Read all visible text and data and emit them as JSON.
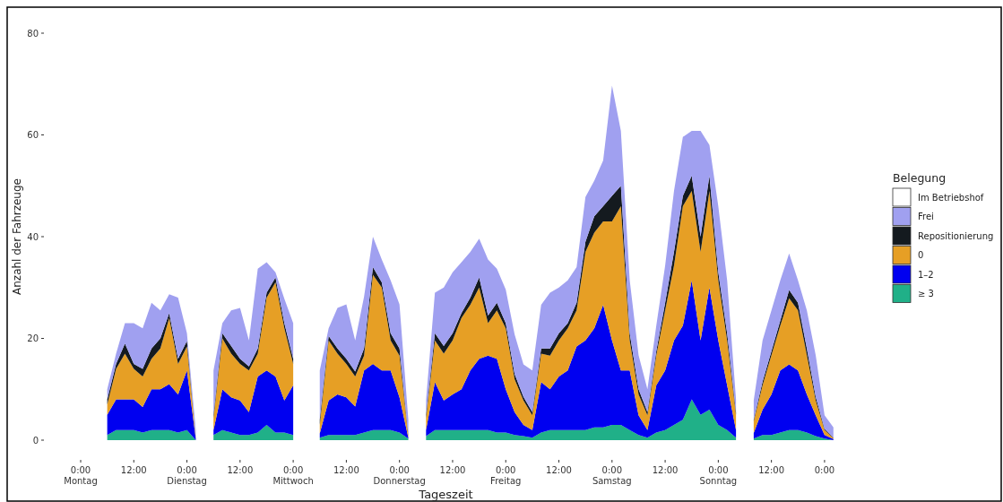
{
  "chart_data": {
    "type": "area",
    "stacked": true,
    "xlabel": "Tageszeit",
    "ylabel": "Anzahl der Fahrzeuge",
    "legend_title": "Belegung",
    "legend": "right",
    "grid": false,
    "ylim": [
      0,
      80
    ],
    "yticks": [
      0,
      20,
      40,
      60,
      80
    ],
    "categories": [
      "0:00\nMontag",
      null,
      null,
      null,
      null,
      null,
      "12:00",
      null,
      null,
      null,
      null,
      null,
      "0:00\nDienstag",
      null,
      null,
      null,
      null,
      null,
      "12:00",
      null,
      null,
      null,
      null,
      null,
      "0:00\nMittwoch",
      null,
      null,
      null,
      null,
      null,
      "12:00",
      null,
      null,
      null,
      null,
      null,
      "0:00\nDonnerstag",
      null,
      null,
      null,
      null,
      null,
      "12:00",
      null,
      null,
      null,
      null,
      null,
      "0:00\nFreitag",
      null,
      null,
      null,
      null,
      null,
      "12:00",
      null,
      null,
      null,
      null,
      null,
      "0:00\nSamstag",
      null,
      null,
      null,
      null,
      null,
      "12:00",
      null,
      null,
      null,
      null,
      null,
      "0:00\nSonntag",
      null,
      null,
      null,
      null,
      null,
      "12:00",
      null,
      null,
      null,
      null,
      null,
      "0:00",
      null,
      null
    ],
    "series": [
      {
        "name": "≥ 3",
        "color": "#20b088",
        "values": [
          null,
          null,
          null,
          1,
          2,
          2,
          2,
          1.5,
          2,
          2,
          2,
          1.5,
          2,
          0,
          null,
          1,
          2,
          1.5,
          1,
          1,
          1.5,
          3,
          1.5,
          1.5,
          1,
          null,
          null,
          0.5,
          1,
          1,
          1,
          1,
          1.5,
          2,
          2,
          2,
          1.5,
          0.3,
          null,
          0.8,
          2,
          2,
          2,
          2,
          2,
          2,
          2,
          1.5,
          1.5,
          1,
          0.8,
          0.5,
          1.5,
          2,
          2,
          2,
          2,
          2,
          2.5,
          2.5,
          3,
          3,
          2,
          1,
          0.5,
          1.5,
          2,
          3,
          4,
          8,
          5,
          6,
          3,
          2,
          0.5,
          null,
          0.3,
          1,
          1,
          1.5,
          2,
          2,
          1.5,
          0.8,
          0.3,
          0,
          null
        ]
      },
      {
        "name": "1–2",
        "color": "#0000f0",
        "values": [
          null,
          null,
          null,
          4,
          6,
          6,
          6,
          5,
          8,
          8,
          9,
          7.5,
          11.7,
          0.3,
          null,
          1,
          8,
          6.9,
          6.8,
          4.5,
          11,
          10.7,
          11,
          6.3,
          9.8,
          null,
          null,
          0.8,
          6.8,
          8,
          7.4,
          5.6,
          12.2,
          13,
          11.7,
          11.7,
          6.9,
          0.2,
          null,
          1.2,
          9.4,
          5.8,
          7,
          8,
          11.7,
          14,
          14.6,
          14.5,
          8.5,
          4.5,
          2.2,
          1.5,
          9.9,
          8,
          10.5,
          11.7,
          16.4,
          17.6,
          19.5,
          24.1,
          16.6,
          10.7,
          11.7,
          3.9,
          1.5,
          9.3,
          11.7,
          16.6,
          18.5,
          23.4,
          14.6,
          24,
          16.6,
          8.8,
          1.5,
          null,
          1.1,
          5,
          8,
          12.2,
          12.9,
          11.7,
          7.5,
          4.1,
          0.7,
          0.2,
          null
        ]
      },
      {
        "name": "0",
        "color": "#e69f25",
        "values": [
          null,
          null,
          null,
          2,
          6,
          9,
          6,
          6,
          6,
          8,
          13,
          6,
          4.7,
          0.2,
          null,
          2.3,
          10,
          8.6,
          7.2,
          8.2,
          4.5,
          14.3,
          18.5,
          14.2,
          4.2,
          null,
          null,
          1.7,
          11.8,
          8,
          6.6,
          5.9,
          2.9,
          17.5,
          16.3,
          5.9,
          8.2,
          0.3,
          null,
          2.3,
          8.2,
          9.2,
          10.6,
          14,
          12.9,
          14,
          6.4,
          9.5,
          12,
          6.5,
          4.8,
          2.9,
          5.6,
          6.6,
          7.1,
          8.3,
          7.1,
          17.4,
          18.8,
          16.4,
          23.4,
          32.3,
          5.9,
          4.1,
          2.9,
          5.9,
          11.8,
          14.7,
          23.5,
          17.6,
          17.4,
          19,
          11.8,
          8.8,
          3,
          null,
          2.3,
          4.8,
          7.7,
          8.8,
          13,
          11.8,
          7.7,
          2.9,
          1,
          0.2,
          null
        ]
      },
      {
        "name": "Repositionierung",
        "color": "#141a1f",
        "values": [
          null,
          null,
          null,
          1,
          1,
          2,
          1,
          1.5,
          2,
          2,
          1,
          1,
          1.1,
          0,
          null,
          0.7,
          1,
          1.5,
          1,
          0.8,
          1,
          1,
          1,
          1,
          1,
          null,
          null,
          1,
          0.9,
          1,
          1,
          1,
          1.4,
          1.5,
          1,
          1.4,
          1.4,
          0.2,
          null,
          0.7,
          1.4,
          1.5,
          1.4,
          1,
          1.4,
          2,
          1.5,
          1.5,
          1,
          1,
          0.7,
          0.6,
          1,
          1.4,
          1.4,
          1,
          1.5,
          2,
          3.2,
          3,
          5,
          4,
          1.4,
          1,
          0.6,
          0.8,
          1.5,
          2.7,
          2,
          3,
          3,
          3,
          1.6,
          1.4,
          0.5,
          null,
          0.3,
          0.7,
          0.8,
          1,
          1.6,
          1.5,
          1.3,
          0.7,
          0.2,
          0.1,
          null
        ]
      },
      {
        "name": "Frei",
        "color": "#a0a0f0",
        "values": [
          null,
          null,
          null,
          2,
          2,
          4,
          8,
          8,
          9,
          5.5,
          3.7,
          12,
          1.5,
          1.5,
          null,
          8.7,
          2,
          7,
          10,
          5.1,
          15.7,
          6,
          1,
          4.8,
          7,
          null,
          null,
          9.7,
          1.5,
          8,
          10.7,
          6.1,
          10.2,
          6,
          4.5,
          10.4,
          8.7,
          3,
          null,
          2.8,
          8,
          11.5,
          12,
          10,
          9,
          7.6,
          11,
          6.7,
          6.6,
          7.8,
          6.4,
          8.2,
          8.6,
          11,
          9,
          8.4,
          7,
          8.8,
          7,
          9,
          21.7,
          10.8,
          10.4,
          6.7,
          4.5,
          5,
          7.3,
          12,
          11.6,
          8.8,
          20.8,
          6,
          13,
          10.4,
          2.5,
          null,
          3.8,
          8.1,
          8,
          7.9,
          7.2,
          4.4,
          7.5,
          8.2,
          2.7,
          2,
          null
        ]
      },
      {
        "name": "Im Betriebshof",
        "color": "#ffffff",
        "values": [
          null,
          null,
          null,
          null,
          null,
          null,
          null,
          null,
          null,
          null,
          null,
          null,
          null,
          null,
          null,
          null,
          null,
          null,
          null,
          null,
          null,
          null,
          null,
          null,
          null,
          null,
          null,
          null,
          null,
          null,
          null,
          null,
          null,
          null,
          null,
          null,
          null,
          null,
          null,
          null,
          null,
          null,
          null,
          null,
          null,
          null,
          null,
          null,
          null,
          null,
          null,
          null,
          null,
          null,
          null,
          null,
          null,
          null,
          null,
          null,
          null,
          null,
          null,
          null,
          null,
          null,
          null,
          null,
          null,
          null,
          null,
          null,
          null,
          null,
          null,
          null,
          null,
          null,
          null,
          null,
          null,
          null,
          null,
          null,
          null,
          null,
          null
        ]
      }
    ]
  }
}
